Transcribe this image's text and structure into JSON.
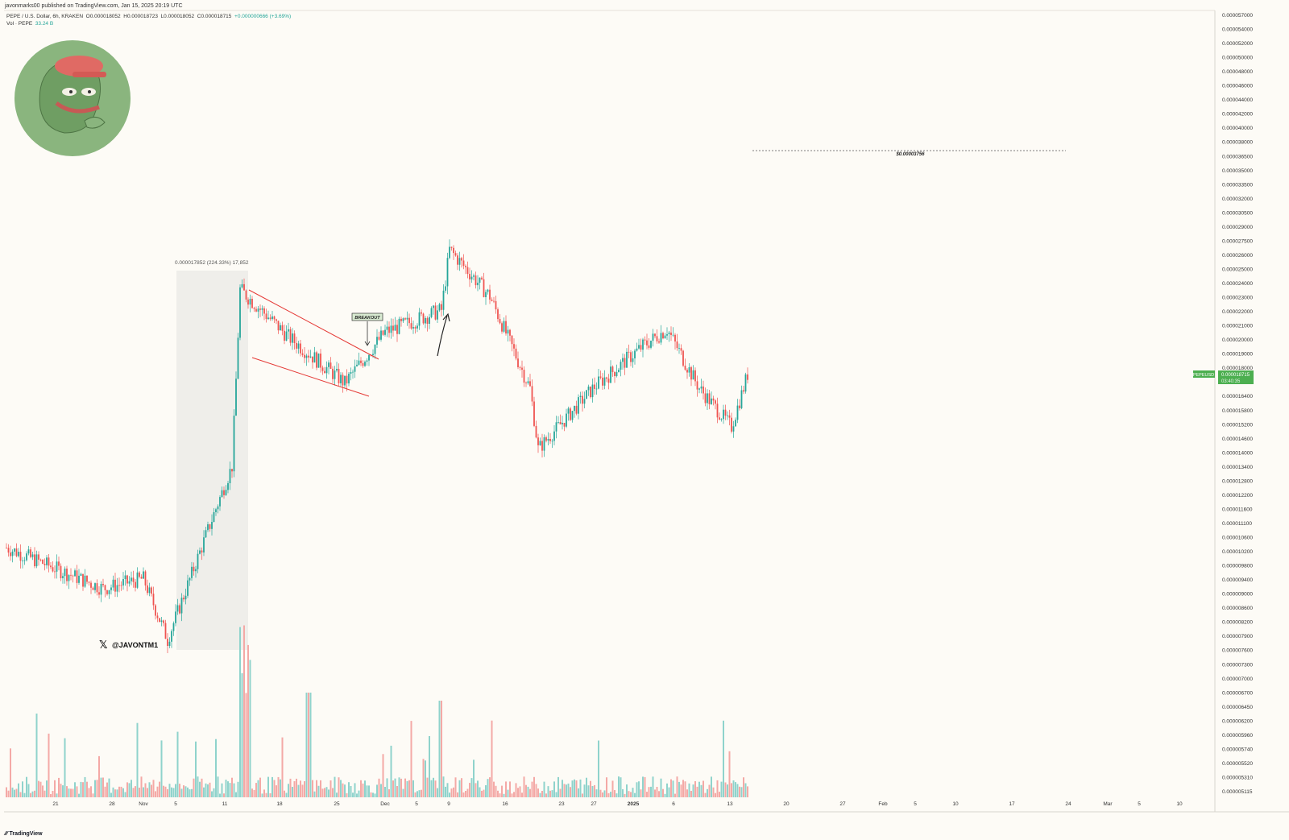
{
  "header": {
    "published": "javonmarks00 published on TradingView.com, Jan 15, 2025 20:19 UTC",
    "symbol": "PEPE / U.S. Dollar, 6h, KRAKEN",
    "open": "O0.000018052",
    "high": "H0.000018723",
    "low": "L0.000018052",
    "close": "C0.000018715",
    "change": "+0.000000666 (+3.69%)",
    "vol_label": "Vol · PEPE",
    "vol_value": "33.24 B"
  },
  "footer": {
    "brand": "TradingView"
  },
  "annotations": {
    "watermark": "@JAVONTM1",
    "measure": "0.000017852 (224.33%) 17,852",
    "breakout": "BREAKOUT",
    "target": "$0.00003756",
    "price_tag_symbol": "PEPEUSD",
    "price_tag_value": "0.000018715",
    "price_tag_timer": "03:40:35"
  },
  "colors": {
    "up": "#26a69a",
    "down": "#ef5350",
    "volume_up": "#8fd3cc",
    "volume_down": "#f4a9a6",
    "pattern": "#e53935",
    "avatar_bg": "#8ab57e"
  },
  "chart_data": {
    "type": "candlestick",
    "title": "PEPE / U.S. Dollar, 6h, KRAKEN",
    "price_scale": "log",
    "y_tick_labels": [
      "0.000057000",
      "0.000054000",
      "0.000052000",
      "0.000050000",
      "0.000048000",
      "0.000046000",
      "0.000044000",
      "0.000042000",
      "0.000040000",
      "0.000038000",
      "0.000036500",
      "0.000035000",
      "0.000033500",
      "0.000032000",
      "0.000030500",
      "0.000029000",
      "0.000027500",
      "0.000026000",
      "0.000025000",
      "0.000024000",
      "0.000023000",
      "0.000022000",
      "0.000021000",
      "0.000020000",
      "0.000019000",
      "0.000018000",
      "0.000017200",
      "0.000016400",
      "0.000015800",
      "0.000015200",
      "0.000014600",
      "0.000014000",
      "0.000013400",
      "0.000012800",
      "0.000012200",
      "0.000011600",
      "0.000011100",
      "0.000010600",
      "0.000010200",
      "0.000009800",
      "0.000009400",
      "0.000009000",
      "0.000008600",
      "0.000008200",
      "0.000007900",
      "0.000007600",
      "0.000007300",
      "0.000007000",
      "0.000006700",
      "0.000006450",
      "0.000006200",
      "0.000005960",
      "0.000005740",
      "0.000005520",
      "0.000005310",
      "0.000005115"
    ],
    "x_tick_labels": [
      "21",
      "28",
      "Nov",
      "5",
      "11",
      "18",
      "25",
      "Dec",
      "5",
      "9",
      "16",
      "23",
      "27",
      "2025",
      "6",
      "13",
      "20",
      "27",
      "Feb",
      "5",
      "10",
      "17",
      "24",
      "Mar",
      "5",
      "10"
    ],
    "ohlc_keypoints": [
      {
        "date": "Oct 15",
        "price": 1.07e-05
      },
      {
        "date": "Oct 27",
        "price": 9.4e-06
      },
      {
        "date": "Nov 1",
        "price": 9.7e-06
      },
      {
        "date": "Nov 4",
        "price": 8e-06
      },
      {
        "date": "Nov 9",
        "price": 1.13e-05
      },
      {
        "date": "Nov 12",
        "price": 1.39e-05
      },
      {
        "date": "Nov 13",
        "price": 2.43e-05
      },
      {
        "date": "Nov 19",
        "price": 2.1e-05
      },
      {
        "date": "Nov 26",
        "price": 1.82e-05
      },
      {
        "date": "Dec 1",
        "price": 2.13e-05
      },
      {
        "date": "Dec 8",
        "price": 2.28e-05
      },
      {
        "date": "Dec 9",
        "price": 2.75e-05
      },
      {
        "date": "Dec 14",
        "price": 2.38e-05
      },
      {
        "date": "Dec 19",
        "price": 1.79e-05
      },
      {
        "date": "Dec 20",
        "price": 1.47e-05
      },
      {
        "date": "Dec 27",
        "price": 1.8e-05
      },
      {
        "date": "Jan 2",
        "price": 2.04e-05
      },
      {
        "date": "Jan 5",
        "price": 2.15e-05
      },
      {
        "date": "Jan 9",
        "price": 1.79e-05
      },
      {
        "date": "Jan 13",
        "price": 1.58e-05
      },
      {
        "date": "Jan 15",
        "price": 1.87e-05
      }
    ],
    "measure_range": {
      "from": 7.9e-06,
      "to": 2.57e-05,
      "change": "0.000017852 (224.33%)"
    },
    "target_price": 3.756e-05,
    "last_price": 1.8715e-05,
    "legend": "none",
    "grid": false
  }
}
